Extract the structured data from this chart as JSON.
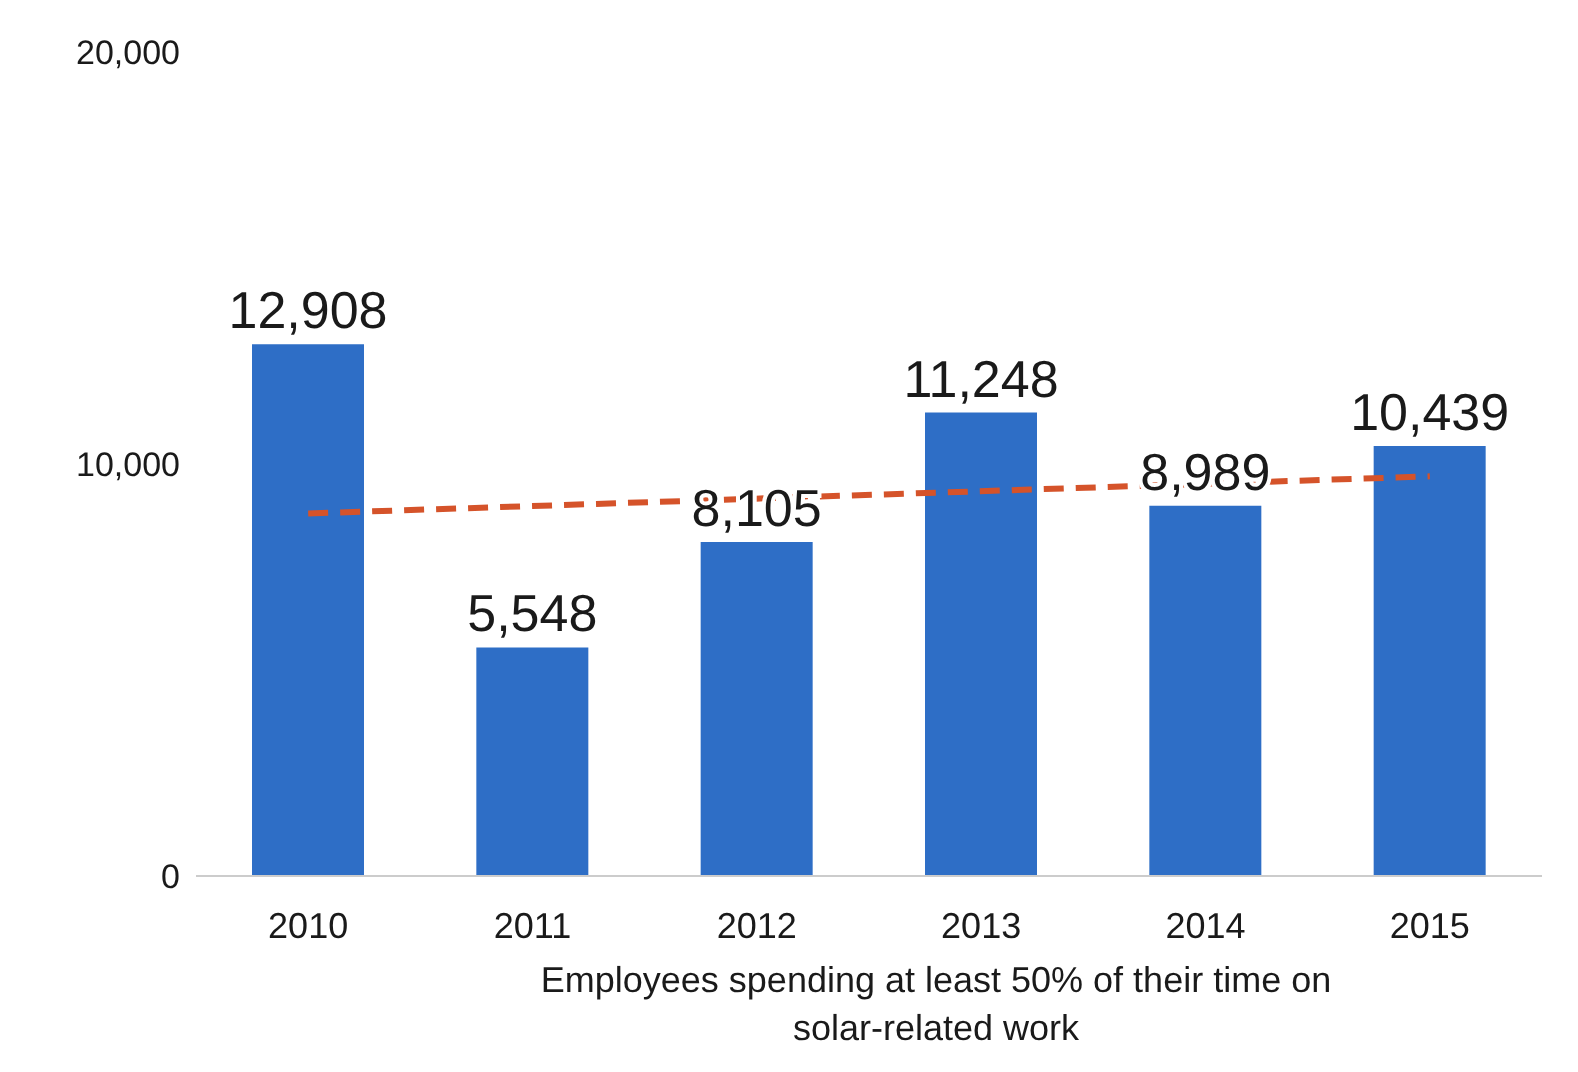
{
  "chart_data": {
    "type": "bar",
    "xlabel": "Employees spending at least 50% of their time on solar-related work",
    "categories": [
      "2010",
      "2011",
      "2012",
      "2013",
      "2014",
      "2015"
    ],
    "series": [
      {
        "color": "#2e6ec6",
        "values": [
          12908,
          5548,
          8105,
          11248,
          8989,
          10439
        ],
        "value_labels": [
          "12,908",
          "5,548",
          "8,105",
          "11,248",
          "8,989",
          "10,439"
        ]
      },
      {
        "type": "line",
        "color": "#d5532a",
        "values": [
          8800,
          null,
          null,
          null,
          null,
          9700
        ],
        "line_style": "dashed",
        "marker": "none"
      }
    ],
    "ylim": [
      0,
      20000
    ],
    "yticks": [
      {
        "value": 0,
        "label": "0"
      },
      {
        "value": 10000,
        "label": "10,000"
      },
      {
        "value": 20000,
        "label": "20,000"
      }
    ],
    "grid": false,
    "legend": false
  }
}
